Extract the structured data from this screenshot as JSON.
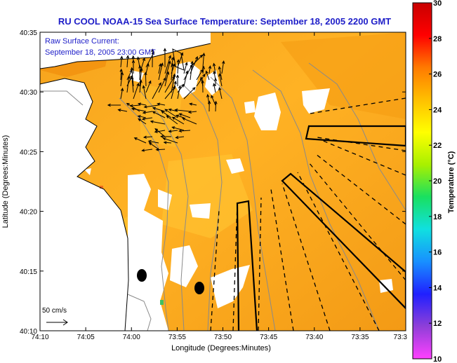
{
  "chart_data": {
    "type": "heatmap",
    "title": "RU COOL  NOAA-15  Sea Surface Temperature:  September 18, 2005 2200 GMT",
    "xlabel": "Longitude (Degrees:Minutes)",
    "ylabel": "Latitude (Degrees:Minutes)",
    "x_ticks": [
      "74:10",
      "74:05",
      "74:00",
      "73:55",
      "73:50",
      "73:45",
      "73:40",
      "73:35",
      "73:3"
    ],
    "y_ticks": [
      "40:35",
      "40:30",
      "40:25",
      "40:20",
      "40:15",
      "40:10"
    ],
    "xlim": [
      -74.1667,
      -73.5
    ],
    "ylim": [
      40.1667,
      40.5833
    ],
    "annotations": {
      "line1": "Raw Surface Current:",
      "line2": "September 18, 2005 23:00 GMT",
      "scale_label": "50 cm/s"
    },
    "colorbar": {
      "label": "Temperature (°C)",
      "min": 10,
      "max": 30,
      "ticks": [
        "10",
        "12",
        "14",
        "16",
        "18",
        "20",
        "22",
        "24",
        "26",
        "28",
        "30"
      ],
      "colors": [
        "#ff40ff",
        "#8f3fd8",
        "#2020ff",
        "#1890ff",
        "#10e0e0",
        "#19e060",
        "#a8f000",
        "#ffff00",
        "#ffc000",
        "#ff7a00",
        "#ff0000",
        "#c80000"
      ]
    }
  }
}
